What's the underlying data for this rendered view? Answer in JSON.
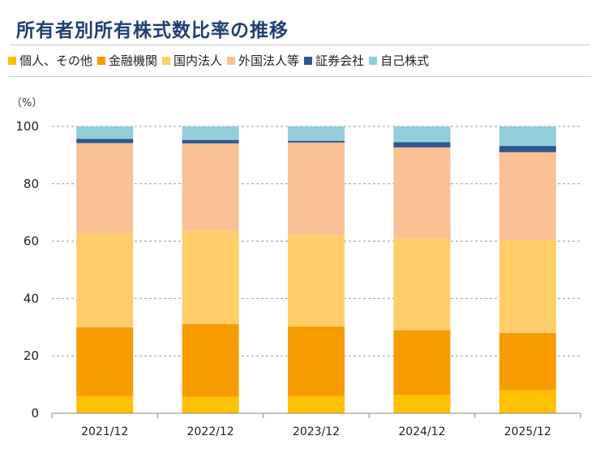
{
  "page": {
    "title": "所有者別所有株式数比率の推移",
    "unit_label": "（%）"
  },
  "chart_data": {
    "type": "bar",
    "stacked": true,
    "title": "所有者別所有株式数比率の推移",
    "ylabel": "（%）",
    "ylim": [
      0,
      100
    ],
    "yticks": [
      "0",
      "20",
      "40",
      "60",
      "80",
      "100"
    ],
    "grid": true,
    "legend_position": "top",
    "categories": [
      "2021/12",
      "2022/12",
      "2023/12",
      "2024/12",
      "2025/12"
    ],
    "series": [
      {
        "name": "個人、その他",
        "color": "#ffc000",
        "values": [
          6.0,
          5.8,
          6.0,
          6.5,
          8.0
        ]
      },
      {
        "name": "金融機関",
        "color": "#f79c00",
        "values": [
          24.0,
          25.3,
          24.2,
          22.5,
          20.0
        ]
      },
      {
        "name": "国内法人",
        "color": "#ffcd6a",
        "values": [
          32.5,
          32.5,
          32.0,
          32.0,
          32.5
        ]
      },
      {
        "name": "外国法人等",
        "color": "#f8c094",
        "values": [
          31.7,
          30.5,
          32.2,
          31.7,
          30.5
        ]
      },
      {
        "name": "証券会社",
        "color": "#2e578f",
        "values": [
          1.5,
          1.2,
          0.6,
          1.8,
          2.2
        ]
      },
      {
        "name": "自己株式",
        "color": "#92cddc",
        "values": [
          4.3,
          4.7,
          5.0,
          5.5,
          6.8
        ]
      }
    ]
  }
}
